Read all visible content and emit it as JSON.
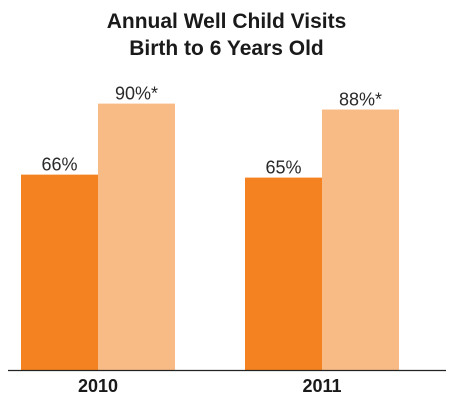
{
  "chart_data": {
    "type": "bar",
    "title": [
      "Annual Well Child Visits",
      "Birth to 6 Years Old"
    ],
    "categories": [
      "2010",
      "2011"
    ],
    "series": [
      {
        "values": [
          66,
          65
        ],
        "labels": [
          "66%",
          "65%"
        ],
        "color": "#f58220"
      },
      {
        "values": [
          90,
          88
        ],
        "labels": [
          "90%*",
          "88%*"
        ],
        "color": "#f9bb86"
      }
    ],
    "ylim": [
      0,
      100
    ],
    "grid": false,
    "legend": "none"
  }
}
